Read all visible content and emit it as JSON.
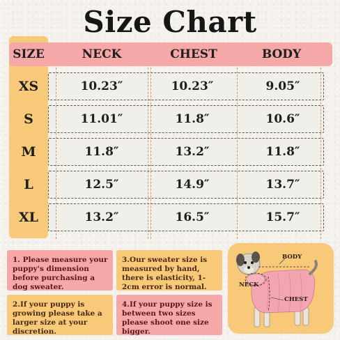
{
  "title": "Size Chart",
  "headers": [
    "SIZE",
    "NECK",
    "CHEST",
    "BODY"
  ],
  "rows": [
    {
      "size": "XS",
      "neck": "10.23″",
      "chest": "10.23″",
      "body": "9.05″"
    },
    {
      "size": "S",
      "neck": "11.01″",
      "chest": "11.8″",
      "body": "10.6″"
    },
    {
      "size": "M",
      "neck": "11.8″",
      "chest": "13.2″",
      "body": "11.8″"
    },
    {
      "size": "L",
      "neck": "12.5″",
      "chest": "14.9″",
      "body": "13.7″"
    },
    {
      "size": "XL",
      "neck": "13.2″",
      "chest": "16.5″",
      "body": "15.7″"
    }
  ],
  "notes": {
    "n1": "1. Please measure your puppy's dimension before purchasing a dog sweater.",
    "n2": "2.If your puppy is growing please take a larger size at your discretion.",
    "n3": "3.Our sweater size is measured by hand, there is elasticity, 1-2cm error is normal.",
    "n4": "4.If your puppy size is between two sizes please shoot one size bigger."
  },
  "dog_labels": {
    "body": "BODY",
    "neck": "NECK",
    "chest": "CHEST"
  },
  "colors": {
    "pink": "#f6a7a7",
    "yellow": "#f7c979",
    "background": "#f4f1ec",
    "sweater": "#f3a6b2"
  }
}
